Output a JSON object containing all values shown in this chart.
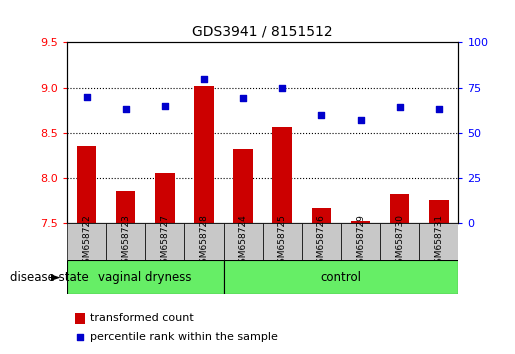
{
  "title": "GDS3941 / 8151512",
  "samples": [
    "GSM658722",
    "GSM658723",
    "GSM658727",
    "GSM658728",
    "GSM658724",
    "GSM658725",
    "GSM658726",
    "GSM658729",
    "GSM658730",
    "GSM658731"
  ],
  "bar_values": [
    8.35,
    7.85,
    8.05,
    9.02,
    8.32,
    8.56,
    7.67,
    7.52,
    7.82,
    7.75
  ],
  "dot_values": [
    70,
    63,
    65,
    80,
    69,
    75,
    60,
    57,
    64,
    63
  ],
  "ylim_left": [
    7.5,
    9.5
  ],
  "ylim_right": [
    0,
    100
  ],
  "yticks_left": [
    7.5,
    8.0,
    8.5,
    9.0,
    9.5
  ],
  "yticks_right": [
    0,
    25,
    50,
    75,
    100
  ],
  "bar_color": "#cc0000",
  "dot_color": "#0000cc",
  "vaginal_dryness_count": 4,
  "control_count": 6,
  "group_label_vaginal": "vaginal dryness",
  "group_label_control": "control",
  "disease_state_label": "disease state",
  "legend_bar_label": "transformed count",
  "legend_dot_label": "percentile rank within the sample",
  "bar_width": 0.5,
  "background_color": "#ffffff",
  "plot_bg_color": "#ffffff",
  "tick_bg_color": "#c8c8c8",
  "group_bg_color": "#66ee66",
  "title_fontsize": 10,
  "axis_label_fontsize": 8,
  "sample_label_fontsize": 6.5,
  "group_label_fontsize": 8.5,
  "legend_fontsize": 8
}
